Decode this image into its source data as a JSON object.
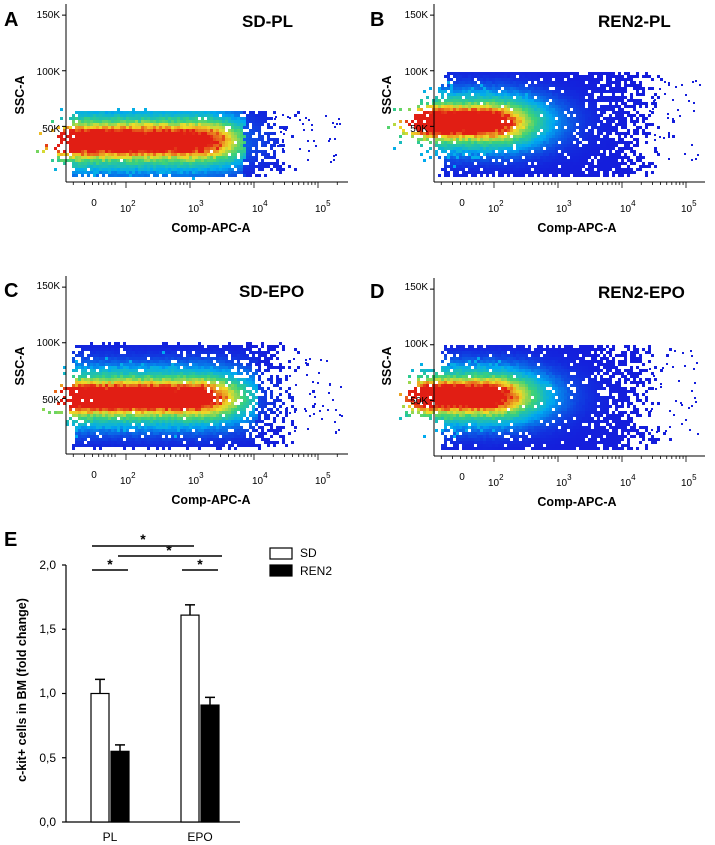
{
  "chart_data": [
    {
      "type": "scatter",
      "panel": "A",
      "title": "SD-PL",
      "xlabel": "Comp-APC-A",
      "ylabel": "SSC-A",
      "x_ticks": [
        "0",
        "10",
        "10",
        "10",
        "10"
      ],
      "x_tick_exponents": [
        "",
        "2",
        "3",
        "4",
        "5"
      ],
      "y_ticks": [
        "50K",
        "100K",
        "150K"
      ],
      "ylim": [
        0,
        160000
      ],
      "density": {
        "gate_top": 70000,
        "hot_y": 38000,
        "hot_log_x": [
          1.5,
          2.9
        ],
        "spread_log_x": 4.3
      }
    },
    {
      "type": "scatter",
      "panel": "B",
      "title": "REN2-PL",
      "xlabel": "Comp-APC-A",
      "ylabel": "SSC-A",
      "x_ticks": [
        "0",
        "10",
        "10",
        "10",
        "10"
      ],
      "x_tick_exponents": [
        "",
        "2",
        "3",
        "4",
        "5"
      ],
      "y_ticks": [
        "50K",
        "100K",
        "150K"
      ],
      "ylim": [
        0,
        160000
      ],
      "density": {
        "gate_top": 105000,
        "hot_y": 55000,
        "hot_log_x": [
          1.4,
          1.7
        ],
        "spread_log_x": 4.4
      }
    },
    {
      "type": "scatter",
      "panel": "C",
      "title": "SD-EPO",
      "xlabel": "Comp-APC-A",
      "ylabel": "SSC-A",
      "x_ticks": [
        "0",
        "10",
        "10",
        "10",
        "10"
      ],
      "x_tick_exponents": [
        "",
        "2",
        "3",
        "4",
        "5"
      ],
      "y_ticks": [
        "50K",
        "100K",
        "150K"
      ],
      "ylim": [
        0,
        160000
      ],
      "density": {
        "gate_top": 105000,
        "hot_y": 52000,
        "hot_log_x": [
          1.6,
          2.9
        ],
        "spread_log_x": 4.5
      }
    },
    {
      "type": "scatter",
      "panel": "D",
      "title": "REN2-EPO",
      "xlabel": "Comp-APC-A",
      "ylabel": "SSC-A",
      "x_ticks": [
        "0",
        "10",
        "10",
        "10",
        "10"
      ],
      "x_tick_exponents": [
        "",
        "2",
        "3",
        "4",
        "5"
      ],
      "y_ticks": [
        "50K",
        "100K",
        "150K"
      ],
      "ylim": [
        0,
        160000
      ],
      "density": {
        "gate_top": 105000,
        "hot_y": 55000,
        "hot_log_x": [
          1.4,
          1.7
        ],
        "spread_log_x": 4.4
      }
    },
    {
      "type": "bar",
      "panel": "E",
      "categories": [
        "PL",
        "EPO"
      ],
      "series": [
        {
          "name": "SD",
          "values": [
            1.0,
            1.61
          ],
          "errors": [
            0.11,
            0.08
          ],
          "color": "#ffffff"
        },
        {
          "name": "REN2",
          "values": [
            0.55,
            0.91
          ],
          "errors": [
            0.05,
            0.06
          ],
          "color": "#000000"
        }
      ],
      "ylabel": "c-kit+ cells in BM (fold change)",
      "y_ticks": [
        "0,0",
        "0,5",
        "1,0",
        "1,5",
        "2,0"
      ],
      "ylim": [
        0,
        2.0
      ],
      "significance": [
        "*",
        "*",
        "*",
        "*"
      ],
      "legend_position": "top-right"
    }
  ]
}
